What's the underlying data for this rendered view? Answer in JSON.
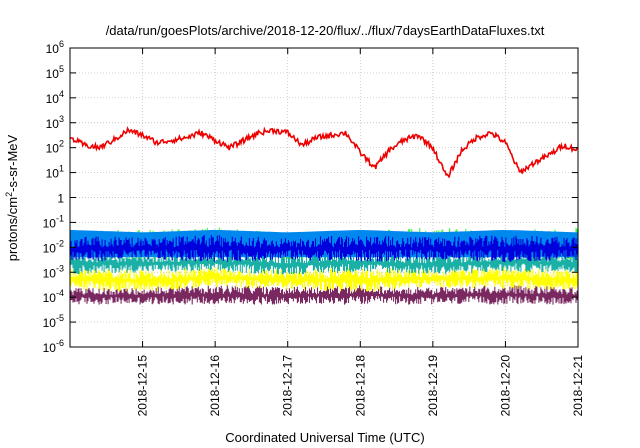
{
  "chart_data": {
    "type": "line",
    "title": "/data/run/goesPlots/archive/2018-12-20/flux/../flux/7daysEarthDataFluxes.txt",
    "xlabel": "Coordinated Universal Time (UTC)",
    "ylabel_prefix": "protons/cm",
    "ylabel_sup": "2",
    "ylabel_suffix": "-s-sr-MeV",
    "yscale": "log",
    "ylim_exp": [
      -6,
      6
    ],
    "xlim": [
      "2018-12-14",
      "2018-12-21"
    ],
    "grid": true,
    "y_ticks": [
      {
        "base": "10",
        "exp": "6"
      },
      {
        "base": "10",
        "exp": "5"
      },
      {
        "base": "10",
        "exp": "4"
      },
      {
        "base": "10",
        "exp": "3"
      },
      {
        "base": "10",
        "exp": "2"
      },
      {
        "base": "10",
        "exp": "1"
      },
      {
        "base": "1",
        "exp": ""
      },
      {
        "base": "10",
        "exp": "-1"
      },
      {
        "base": "10",
        "exp": "-2"
      },
      {
        "base": "10",
        "exp": "-3"
      },
      {
        "base": "10",
        "exp": "-4"
      },
      {
        "base": "10",
        "exp": "-5"
      },
      {
        "base": "10",
        "exp": "-6"
      }
    ],
    "x_ticks": [
      "2018-12-15",
      "2018-12-16",
      "2018-12-17",
      "2018-12-18",
      "2018-12-19",
      "2018-12-20",
      "2018-12-21"
    ],
    "series": [
      {
        "color": "#7a2860",
        "kind": "noise",
        "lo": [
          -4.3,
          -4.3,
          -4.3,
          -4.3,
          -4.3,
          -4.3,
          -4.3,
          -4.3
        ],
        "hi": [
          -3.6,
          -3.6,
          -3.5,
          -3.6,
          -3.5,
          -3.6,
          -3.5,
          -3.6
        ]
      },
      {
        "color": "#ffff00",
        "kind": "noise",
        "lo": [
          -3.7,
          -3.8,
          -3.6,
          -3.7,
          -3.8,
          -3.6,
          -3.7,
          -3.7
        ],
        "hi": [
          -2.8,
          -2.9,
          -2.8,
          -2.9,
          -2.8,
          -2.9,
          -2.8,
          -2.9
        ]
      },
      {
        "color": "#1ab0a6",
        "kind": "noise",
        "lo": [
          -3.1,
          -3.0,
          -3.0,
          -3.1,
          -3.0,
          -3.1,
          -3.0,
          -3.0
        ],
        "hi": [
          -2.2,
          -2.3,
          -2.2,
          -2.3,
          -2.2,
          -2.3,
          -2.2,
          -2.3
        ]
      },
      {
        "color": "#33ff33",
        "kind": "noise",
        "lo": [
          -2.4,
          -2.5,
          -2.4,
          -2.5,
          -2.4,
          -2.5,
          -2.4,
          -2.5
        ],
        "hi": [
          -1.3,
          -1.3,
          -1.2,
          -1.4,
          -1.3,
          -1.2,
          -1.3,
          -1.2
        ]
      },
      {
        "color": "#0088ee",
        "kind": "band",
        "lo": [
          -2.4,
          -2.4,
          -2.4,
          -2.4,
          -2.4,
          -2.4,
          -2.4,
          -2.4
        ],
        "hi": [
          -1.3,
          -1.4,
          -1.3,
          -1.4,
          -1.3,
          -1.4,
          -1.3,
          -1.4
        ]
      },
      {
        "color": "#0000dd",
        "kind": "noise",
        "lo": [
          -2.6,
          -2.5,
          -2.6,
          -2.5,
          -2.6,
          -2.5,
          -2.6,
          -2.5
        ],
        "hi": [
          -1.5,
          -1.6,
          -1.5,
          -1.6,
          -1.5,
          -1.6,
          -1.5,
          -1.6
        ]
      },
      {
        "color": "#ee0000",
        "kind": "line",
        "x": [
          0,
          0.2,
          0.4,
          0.6,
          0.8,
          1.0,
          1.2,
          1.4,
          1.6,
          1.8,
          2.0,
          2.2,
          2.4,
          2.6,
          2.8,
          3.0,
          3.2,
          3.4,
          3.6,
          3.8,
          4.0,
          4.2,
          4.4,
          4.6,
          4.8,
          5.0,
          5.2,
          5.4,
          5.6,
          5.8,
          6.0,
          6.2,
          6.4,
          6.6,
          6.8,
          7.0
        ],
        "y": [
          2.4,
          2.1,
          2.0,
          2.3,
          2.7,
          2.5,
          2.2,
          2.3,
          2.4,
          2.6,
          2.3,
          2.0,
          2.3,
          2.6,
          2.7,
          2.6,
          2.1,
          2.4,
          2.5,
          2.6,
          1.8,
          1.2,
          1.9,
          2.3,
          2.5,
          2.0,
          0.8,
          1.9,
          2.4,
          2.6,
          2.2,
          1.0,
          1.4,
          1.7,
          2.1,
          1.9
        ]
      }
    ]
  }
}
